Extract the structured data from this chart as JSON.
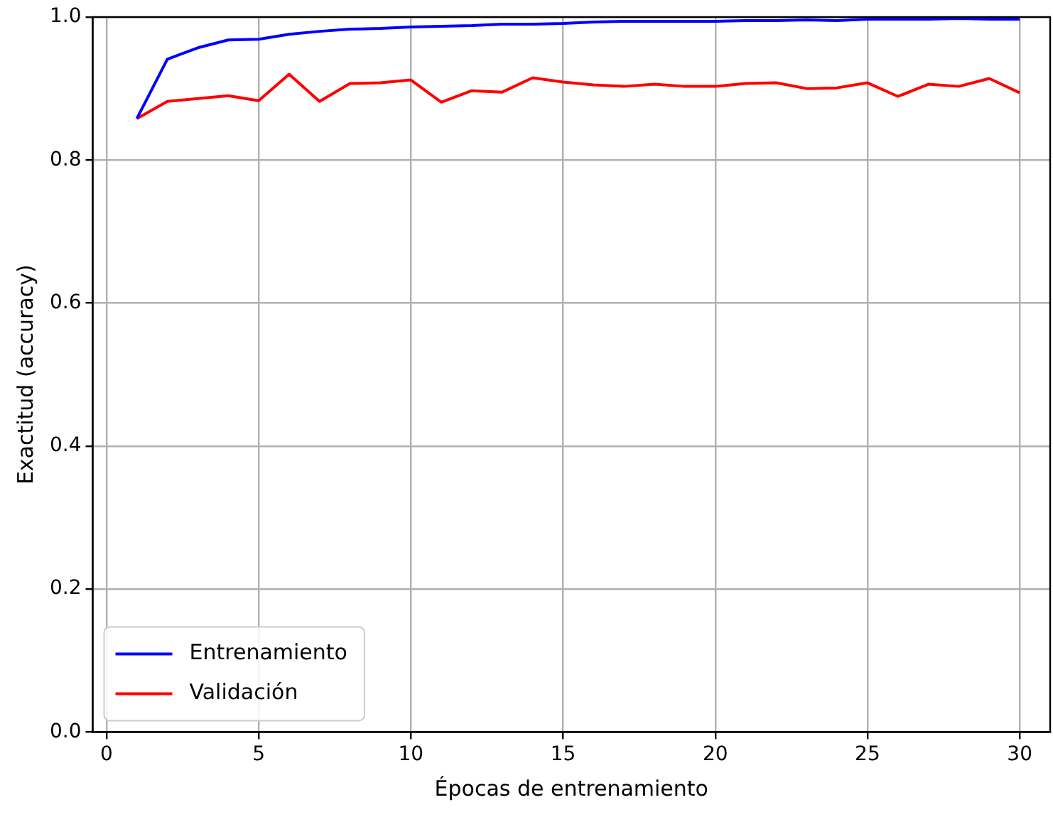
{
  "chart_data": {
    "type": "line",
    "xlabel": "Épocas de entrenamiento",
    "ylabel": "Exactitud (accuracy)",
    "x": [
      1,
      2,
      3,
      4,
      5,
      6,
      7,
      8,
      9,
      10,
      11,
      12,
      13,
      14,
      15,
      16,
      17,
      18,
      19,
      20,
      21,
      22,
      23,
      24,
      25,
      26,
      27,
      28,
      29,
      30
    ],
    "series": [
      {
        "name": "Entrenamiento",
        "color": "#0000ff",
        "values": [
          0.858,
          0.941,
          0.957,
          0.968,
          0.969,
          0.976,
          0.98,
          0.983,
          0.984,
          0.986,
          0.987,
          0.988,
          0.99,
          0.99,
          0.991,
          0.993,
          0.994,
          0.994,
          0.994,
          0.994,
          0.995,
          0.995,
          0.996,
          0.995,
          0.997,
          0.997,
          0.997,
          0.998,
          0.997,
          0.997
        ]
      },
      {
        "name": "Validación",
        "color": "#ff0000",
        "values": [
          0.858,
          0.882,
          0.886,
          0.89,
          0.883,
          0.92,
          0.882,
          0.907,
          0.908,
          0.912,
          0.881,
          0.897,
          0.895,
          0.915,
          0.909,
          0.905,
          0.903,
          0.906,
          0.903,
          0.903,
          0.907,
          0.908,
          0.9,
          0.901,
          0.908,
          0.889,
          0.906,
          0.903,
          0.914,
          0.894
        ]
      }
    ],
    "xlim": [
      -0.45,
      31
    ],
    "xticks": [
      0,
      5,
      10,
      15,
      20,
      25,
      30
    ],
    "ylim": [
      0,
      1
    ],
    "yticks": [
      {
        "value": 0,
        "label": "0.0"
      },
      {
        "value": 0.2,
        "label": "0.2"
      },
      {
        "value": 0.4,
        "label": "0.4"
      },
      {
        "value": 0.6,
        "label": "0.6"
      },
      {
        "value": 0.8,
        "label": "0.8"
      },
      {
        "value": 1,
        "label": "1.0"
      }
    ],
    "grid": true,
    "legend": "bottom left",
    "marker": "none",
    "line_style": "solid"
  }
}
